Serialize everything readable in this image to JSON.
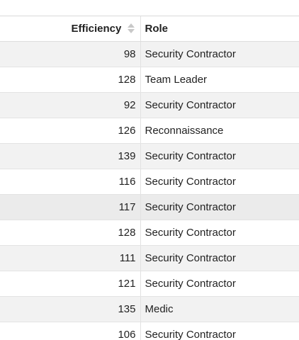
{
  "table": {
    "columns": [
      {
        "key": "efficiency",
        "label": "Efficiency",
        "sortable": true,
        "sort_state": "none"
      },
      {
        "key": "role",
        "label": "Role",
        "sortable": false
      }
    ],
    "rows": [
      {
        "efficiency": "98",
        "role": "Security Contractor"
      },
      {
        "efficiency": "128",
        "role": "Team Leader"
      },
      {
        "efficiency": "92",
        "role": "Security Contractor"
      },
      {
        "efficiency": "126",
        "role": "Reconnaissance"
      },
      {
        "efficiency": "139",
        "role": "Security Contractor"
      },
      {
        "efficiency": "116",
        "role": "Security Contractor"
      },
      {
        "efficiency": "117",
        "role": "Security Contractor"
      },
      {
        "efficiency": "128",
        "role": "Security Contractor"
      },
      {
        "efficiency": "111",
        "role": "Security Contractor"
      },
      {
        "efficiency": "121",
        "role": "Security Contractor"
      },
      {
        "efficiency": "135",
        "role": "Medic"
      },
      {
        "efficiency": "106",
        "role": "Security Contractor"
      }
    ],
    "hovered_row_index": 6
  },
  "colors": {
    "stripe": "#f2f2f2",
    "hover": "#ebebeb",
    "border": "#e3e3e3",
    "sort_icon": "#c8c8c8"
  },
  "icons": {
    "sort": "sort-icon"
  }
}
